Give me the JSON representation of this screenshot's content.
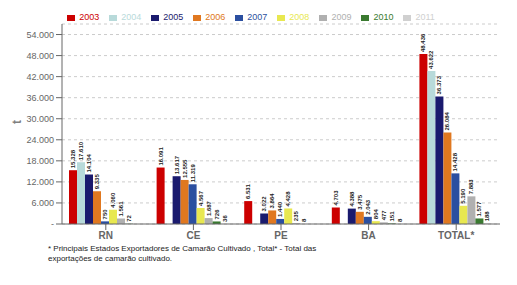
{
  "chart_data": {
    "type": "bar",
    "categories": [
      "RN",
      "CE",
      "PE",
      "BA",
      "TOTAL*"
    ],
    "series": [
      {
        "name": "2003",
        "color": "#cc0000",
        "values": [
          15328,
          16091,
          6531,
          4703,
          48436
        ],
        "value_labels": [
          "15.328",
          "16.091",
          "6.531",
          "4.703",
          "48.436"
        ]
      },
      {
        "name": "2004",
        "color": "#b8dada",
        "values": [
          17610,
          0,
          0,
          0,
          43622
        ],
        "value_labels": [
          "17.610",
          null,
          null,
          null,
          "43.622"
        ]
      },
      {
        "name": "2005",
        "color": "#1a1a6e",
        "values": [
          14104,
          13617,
          3022,
          4388,
          36373
        ],
        "value_labels": [
          "14.104",
          "13.617",
          "3.022",
          "4.388",
          "36.373"
        ]
      },
      {
        "name": "2006",
        "color": "#e07820",
        "values": [
          9335,
          12555,
          3864,
          3475,
          26084
        ],
        "value_labels": [
          "9.335",
          "12.555",
          "3.864",
          "3.475",
          "26.084"
        ]
      },
      {
        "name": "2007",
        "color": "#2b4fa0",
        "values": [
          750,
          11319,
          1440,
          2043,
          14428
        ],
        "value_labels": [
          "750",
          "11.319",
          "1.440",
          "2.043",
          "14.428"
        ]
      },
      {
        "name": "2008",
        "color": "#e8e850",
        "values": [
          4060,
          4567,
          4428,
          804,
          5190
        ],
        "value_labels": [
          "4.060",
          "4.567",
          "4.428",
          "804",
          "5.190"
        ]
      },
      {
        "name": "2009",
        "color": "#b0b0b0",
        "values": [
          1561,
          1687,
          235,
          477,
          7883
        ],
        "value_labels": [
          "1.561",
          "1.687",
          "235",
          "477",
          "7.883"
        ]
      },
      {
        "name": "2010",
        "color": "#3a7a30",
        "values": [
          72,
          726,
          8,
          151,
          1577
        ],
        "value_labels": [
          "72",
          "726",
          "8",
          "151",
          "1.577"
        ]
      },
      {
        "name": "2011",
        "color": "#d0d0d0",
        "values": [
          0,
          36,
          0,
          8,
          188
        ],
        "value_labels": [
          null,
          "36",
          null,
          "8",
          "188"
        ]
      }
    ],
    "ylabel": "t",
    "ylim": [
      0,
      57000
    ],
    "yticks": [
      {
        "value": 0,
        "label": "-"
      },
      {
        "value": 6000,
        "label": "6.000"
      },
      {
        "value": 12000,
        "label": "12.000"
      },
      {
        "value": 18000,
        "label": "18.000"
      },
      {
        "value": 24000,
        "label": "24.000"
      },
      {
        "value": 30000,
        "label": "30.000"
      },
      {
        "value": 36000,
        "label": "36.000"
      },
      {
        "value": 42000,
        "label": "42.000"
      },
      {
        "value": 48000,
        "label": "48.000"
      },
      {
        "value": 54000,
        "label": "54.000"
      }
    ],
    "grid": true,
    "legend": "top",
    "data_labels": true,
    "annotations": [
      "* Principais Estados Exportadores de Camarão Cultivado , Total* - Total das\nexportações de camarão cultivado."
    ]
  }
}
